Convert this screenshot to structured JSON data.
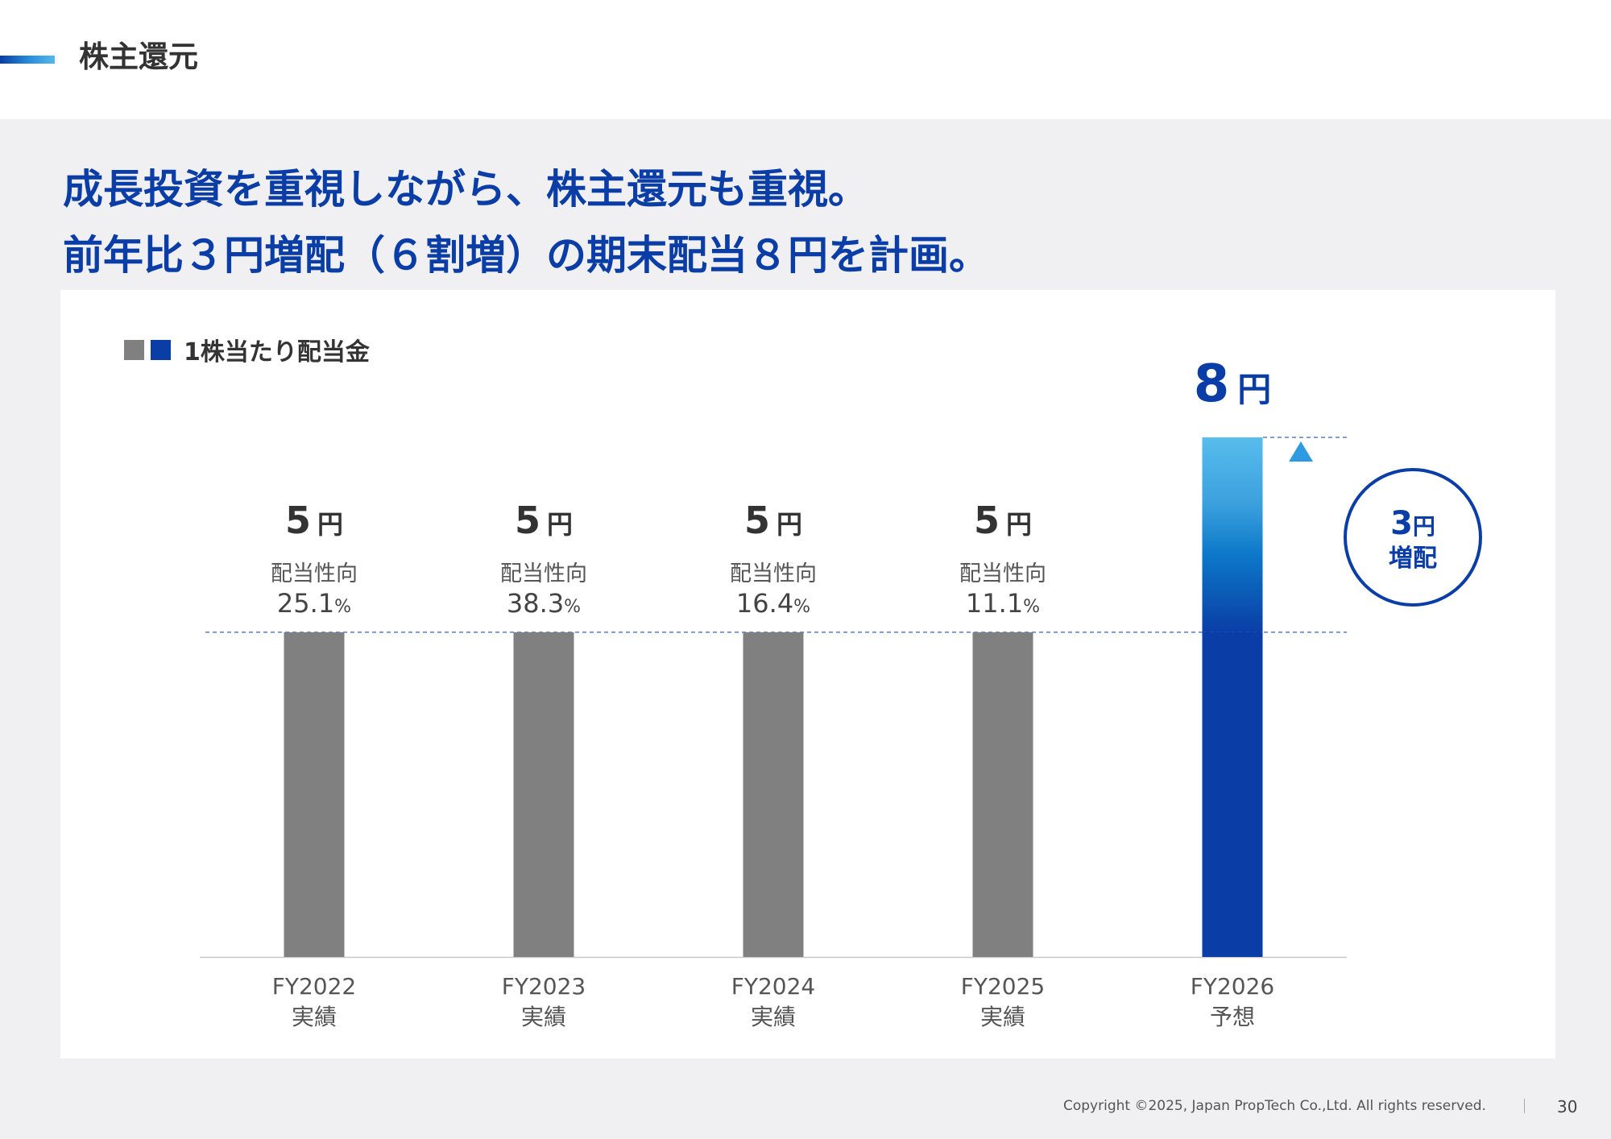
{
  "header": {
    "section_title": "株主還元"
  },
  "headline": {
    "line1": "成長投資を重視しながら、株主還元も重視。",
    "line2": "前年比３円増配（６割増）の期末配当８円を計画。"
  },
  "colors": {
    "actual_bar": "#808080",
    "forecast_bar": "#0a3ea6",
    "forecast_bar_top": "#55b8ea",
    "accent": "#0a3ea6"
  },
  "chart_data": {
    "type": "bar",
    "title": "1株当たり配当金",
    "legend_placement": "top-left",
    "unit": "円",
    "categories": [
      {
        "name": "FY2022",
        "sub": "実績"
      },
      {
        "name": "FY2023",
        "sub": "実績"
      },
      {
        "name": "FY2024",
        "sub": "実績"
      },
      {
        "name": "FY2025",
        "sub": "実績"
      },
      {
        "name": "FY2026",
        "sub": "予想"
      }
    ],
    "values": [
      5,
      5,
      5,
      5,
      8
    ],
    "forecast_index": 4,
    "payout_ratio_label": "配当性向",
    "payout_ratios": [
      "25.1",
      "38.3",
      "16.4",
      "11.1",
      null
    ],
    "percent_suffix": "%",
    "ylim": [
      0,
      8
    ],
    "increase": {
      "value": "3",
      "unit": "円",
      "label": "増配"
    },
    "grid": false
  },
  "footer": {
    "copyright": "Copyright ©2025, Japan PropTech Co.,Ltd. All rights reserved.",
    "page_number": "30"
  }
}
